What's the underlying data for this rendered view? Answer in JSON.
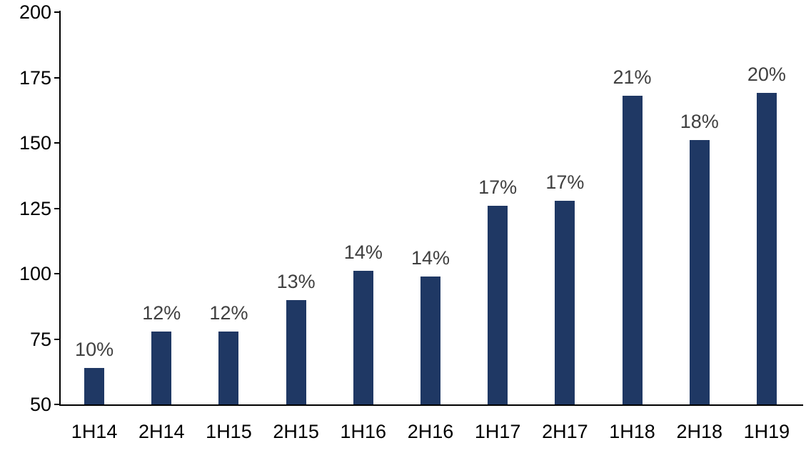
{
  "chart_data": {
    "type": "bar",
    "title": "",
    "xlabel": "",
    "ylabel": "",
    "categories": [
      "1H14",
      "2H14",
      "1H15",
      "2H15",
      "1H16",
      "2H16",
      "1H17",
      "2H17",
      "1H18",
      "2H18",
      "1H19"
    ],
    "values": [
      64,
      78,
      78,
      90,
      101,
      99,
      126,
      128,
      168,
      151,
      169
    ],
    "bar_labels": [
      "10%",
      "12%",
      "12%",
      "13%",
      "14%",
      "14%",
      "17%",
      "17%",
      "21%",
      "18%",
      "20%"
    ],
    "ylim": [
      50,
      200
    ],
    "yticks": [
      50,
      75,
      100,
      125,
      150,
      175,
      200
    ],
    "grid": "off",
    "legend": "none",
    "colors": {
      "bar": "#1f3864",
      "bar_label": "#404040",
      "axis_text": "#000000",
      "axis_line": "#000000",
      "background": "#ffffff"
    }
  }
}
